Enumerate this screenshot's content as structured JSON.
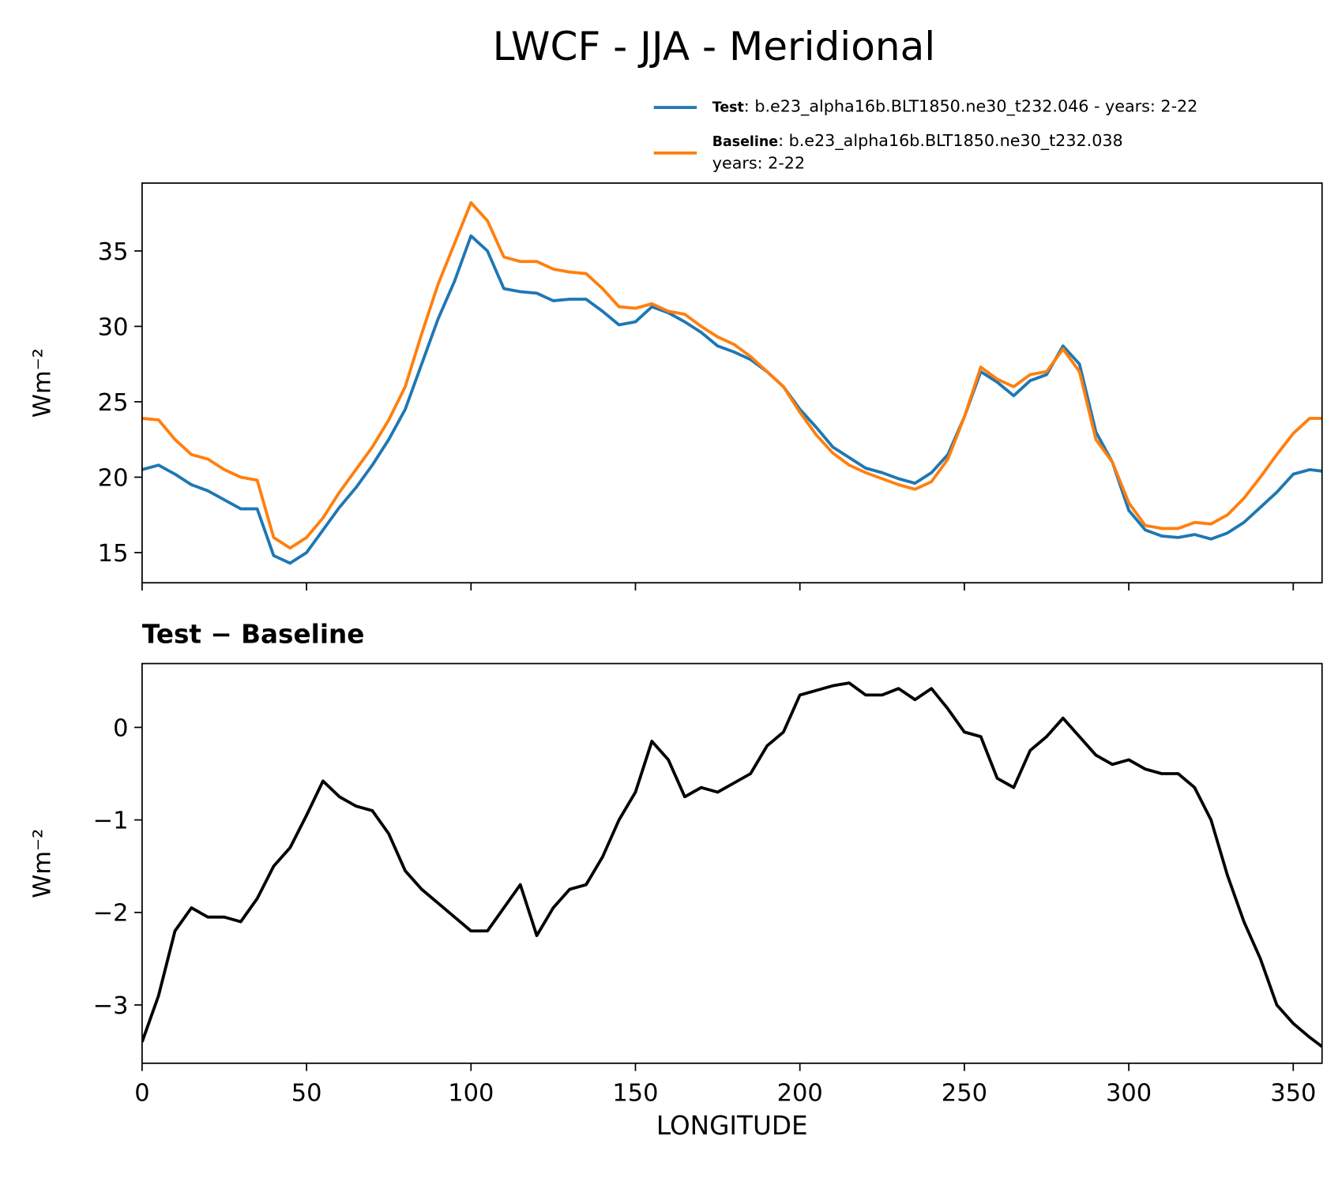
{
  "chart_data": [
    {
      "type": "line",
      "suptitle": "LWCF - JJA - Meridional",
      "ylabel": "Wm⁻²",
      "x": [
        0,
        5,
        10,
        15,
        20,
        25,
        30,
        35,
        40,
        45,
        50,
        55,
        60,
        65,
        70,
        75,
        80,
        85,
        90,
        95,
        100,
        105,
        110,
        115,
        120,
        125,
        130,
        135,
        140,
        145,
        150,
        155,
        160,
        165,
        170,
        175,
        180,
        185,
        190,
        195,
        200,
        205,
        210,
        215,
        220,
        225,
        230,
        235,
        240,
        245,
        250,
        255,
        260,
        265,
        270,
        275,
        280,
        285,
        290,
        295,
        300,
        305,
        310,
        315,
        320,
        325,
        330,
        335,
        340,
        345,
        350,
        355,
        358.75
      ],
      "series": [
        {
          "name": "Test",
          "label_lines": [
            ": b.e23_alpha16b.BLT1850.ne30_t232.046 - years: 2-22"
          ],
          "color": "#1f77b4",
          "values": [
            20.5,
            20.8,
            20.2,
            19.5,
            19.1,
            18.5,
            17.9,
            17.9,
            14.8,
            14.3,
            15.0,
            16.5,
            18.0,
            19.3,
            20.8,
            22.5,
            24.5,
            27.5,
            30.5,
            33.0,
            36.0,
            35.0,
            32.5,
            32.3,
            32.2,
            31.7,
            31.8,
            31.8,
            31.0,
            30.1,
            30.3,
            31.3,
            30.9,
            30.3,
            29.6,
            28.7,
            28.3,
            27.8,
            27.0,
            26.0,
            24.5,
            23.3,
            22.0,
            21.3,
            20.6,
            20.3,
            19.9,
            19.6,
            20.3,
            21.5,
            24.0,
            27.0,
            26.3,
            25.4,
            26.4,
            26.8,
            28.7,
            27.5,
            23.0,
            21.0,
            17.8,
            16.5,
            16.1,
            16.0,
            16.2,
            15.9,
            16.3,
            17.0,
            18.0,
            19.0,
            20.2,
            20.5,
            20.4
          ]
        },
        {
          "name": "Baseline",
          "label_lines": [
            ": b.e23_alpha16b.BLT1850.ne30_t232.038",
            "years: 2-22"
          ],
          "color": "#ff7f0e",
          "values": [
            23.9,
            23.8,
            22.5,
            21.5,
            21.2,
            20.5,
            20.0,
            19.8,
            16.0,
            15.3,
            16.0,
            17.3,
            19.0,
            20.5,
            22.0,
            23.8,
            26.0,
            29.5,
            32.8,
            35.5,
            38.2,
            37.0,
            34.6,
            34.3,
            34.3,
            33.8,
            33.6,
            33.5,
            32.5,
            31.3,
            31.2,
            31.5,
            31.0,
            30.8,
            30.0,
            29.3,
            28.8,
            28.0,
            27.0,
            26.0,
            24.3,
            22.8,
            21.6,
            20.8,
            20.3,
            19.9,
            19.5,
            19.2,
            19.7,
            21.2,
            24.0,
            27.3,
            26.5,
            26.0,
            26.8,
            27.0,
            28.5,
            27.0,
            22.5,
            21.0,
            18.3,
            16.8,
            16.6,
            16.6,
            17.0,
            16.9,
            17.5,
            18.6,
            20.0,
            21.5,
            22.9,
            23.9,
            23.9
          ]
        }
      ],
      "xlim": [
        0,
        358.75
      ],
      "xticks": [
        0,
        50,
        100,
        150,
        200,
        250,
        300,
        350
      ],
      "show_xtick_labels": false,
      "ylim": [
        13.0,
        39.5
      ],
      "yticks": [
        15,
        20,
        25,
        30,
        35
      ]
    },
    {
      "type": "line",
      "title": "Test − Baseline",
      "ylabel": "Wm⁻²",
      "xlabel": "LONGITUDE",
      "color": "#000000",
      "x": [
        0,
        5,
        10,
        15,
        20,
        25,
        30,
        35,
        40,
        45,
        50,
        55,
        60,
        65,
        70,
        75,
        80,
        85,
        90,
        95,
        100,
        105,
        110,
        115,
        120,
        125,
        130,
        135,
        140,
        145,
        150,
        155,
        160,
        165,
        170,
        175,
        180,
        185,
        190,
        195,
        200,
        205,
        210,
        215,
        220,
        225,
        230,
        235,
        240,
        245,
        250,
        255,
        260,
        265,
        270,
        275,
        280,
        285,
        290,
        295,
        300,
        305,
        310,
        315,
        320,
        325,
        330,
        335,
        340,
        345,
        350,
        355,
        358.75
      ],
      "values": [
        -3.4,
        -2.9,
        -2.2,
        -1.95,
        -2.05,
        -2.05,
        -2.1,
        -1.85,
        -1.5,
        -1.3,
        -0.95,
        -0.58,
        -0.75,
        -0.85,
        -0.9,
        -1.15,
        -1.55,
        -1.75,
        -1.9,
        -2.05,
        -2.2,
        -2.2,
        -1.95,
        -1.7,
        -2.25,
        -1.95,
        -1.75,
        -1.7,
        -1.4,
        -1.0,
        -0.7,
        -0.15,
        -0.35,
        -0.75,
        -0.65,
        -0.7,
        -0.6,
        -0.5,
        -0.2,
        -0.05,
        0.35,
        0.4,
        0.45,
        0.48,
        0.35,
        0.35,
        0.42,
        0.3,
        0.42,
        0.2,
        -0.05,
        -0.1,
        -0.55,
        -0.65,
        -0.25,
        -0.1,
        0.1,
        -0.1,
        -0.3,
        -0.4,
        -0.35,
        -0.45,
        -0.5,
        -0.5,
        -0.65,
        -1.0,
        -1.6,
        -2.1,
        -2.5,
        -3.0,
        -3.2,
        -3.35,
        -3.45
      ],
      "xlim": [
        0,
        358.75
      ],
      "xticks": [
        0,
        50,
        100,
        150,
        200,
        250,
        300,
        350
      ],
      "show_xtick_labels": true,
      "ylim": [
        -3.63,
        0.69
      ],
      "yticks": [
        {
          "value": -3,
          "label": "−3"
        },
        {
          "value": -2,
          "label": "−2"
        },
        {
          "value": -1,
          "label": "−1"
        },
        0
      ]
    }
  ]
}
